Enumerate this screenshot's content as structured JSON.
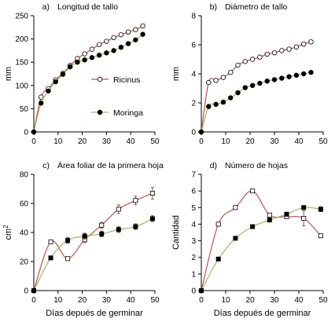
{
  "figure": {
    "xlabel_bottom": "Días depués de germinar"
  },
  "chart_data": [
    {
      "type": "line",
      "panel": "a)",
      "title": "Longitud de tallo",
      "ylabel": "mm",
      "xlabel": "",
      "xlim": [
        0,
        50
      ],
      "ylim": [
        0,
        250
      ],
      "xticks": [
        0,
        10,
        20,
        30,
        40,
        50
      ],
      "yticks": [
        0,
        50,
        100,
        150,
        200,
        250
      ],
      "legend_position": "right",
      "series": [
        {
          "name": "Ricinus",
          "marker": "open-circle",
          "color": "#c0504d",
          "x": [
            0,
            3,
            6,
            9,
            12,
            15,
            18,
            21,
            24,
            27,
            30,
            33,
            36,
            39,
            42,
            45
          ],
          "y": [
            0,
            75,
            93,
            112,
            126,
            143,
            158,
            168,
            178,
            188,
            195,
            203,
            209,
            215,
            220,
            228
          ],
          "err": [
            0,
            3,
            3,
            3,
            3,
            3,
            3,
            3,
            3,
            3,
            3,
            3,
            3,
            3,
            3,
            4
          ]
        },
        {
          "name": "Moringa",
          "marker": "filled-circle",
          "color": "#9bbb59",
          "x": [
            0,
            3,
            6,
            9,
            12,
            15,
            18,
            21,
            24,
            27,
            30,
            33,
            36,
            39,
            42,
            45
          ],
          "y": [
            0,
            62,
            88,
            108,
            124,
            140,
            150,
            155,
            160,
            165,
            170,
            175,
            182,
            190,
            198,
            210
          ],
          "err": [
            0,
            2,
            2,
            2,
            2,
            2,
            2,
            2,
            2,
            2,
            2,
            2,
            2,
            2,
            3,
            3
          ]
        }
      ]
    },
    {
      "type": "line",
      "panel": "b)",
      "title": "Diámetro de tallo",
      "ylabel": "mm",
      "xlabel": "",
      "xlim": [
        0,
        50
      ],
      "ylim": [
        0,
        8
      ],
      "xticks": [
        0,
        10,
        20,
        30,
        40,
        50
      ],
      "yticks": [
        0,
        2,
        4,
        6,
        8
      ],
      "series": [
        {
          "name": "Ricinus",
          "marker": "open-circle",
          "color": "#c0504d",
          "x": [
            0,
            3,
            6,
            9,
            12,
            15,
            18,
            21,
            24,
            27,
            30,
            33,
            36,
            39,
            42,
            45
          ],
          "y": [
            0,
            3.4,
            3.55,
            3.75,
            4.1,
            4.6,
            4.85,
            5.0,
            5.15,
            5.35,
            5.45,
            5.6,
            5.7,
            5.85,
            6.05,
            6.2
          ],
          "err": [
            0,
            0.05,
            0.05,
            0.05,
            0.05,
            0.05,
            0.05,
            0.05,
            0.05,
            0.05,
            0.05,
            0.05,
            0.05,
            0.05,
            0.05,
            0.05
          ]
        },
        {
          "name": "Moringa",
          "marker": "filled-circle",
          "color": "#9bbb59",
          "x": [
            0,
            3,
            6,
            9,
            12,
            15,
            18,
            21,
            24,
            27,
            30,
            33,
            36,
            39,
            42,
            45
          ],
          "y": [
            0,
            1.75,
            1.9,
            2.05,
            2.35,
            2.7,
            3.05,
            3.2,
            3.35,
            3.5,
            3.6,
            3.7,
            3.8,
            3.9,
            4.0,
            4.1
          ],
          "err": [
            0,
            0.05,
            0.05,
            0.05,
            0.05,
            0.05,
            0.05,
            0.05,
            0.05,
            0.05,
            0.05,
            0.05,
            0.05,
            0.05,
            0.05,
            0.05
          ]
        }
      ]
    },
    {
      "type": "line",
      "panel": "c)",
      "title": "Área foliar de la primera hoja",
      "ylabel": "cm",
      "ylabel_sup": "2",
      "xlabel": "Días depués de germinar",
      "xlim": [
        0,
        50
      ],
      "ylim": [
        0,
        80
      ],
      "xticks": [
        0,
        10,
        20,
        30,
        40,
        50
      ],
      "yticks": [
        0,
        20,
        40,
        60,
        80
      ],
      "series": [
        {
          "name": "Ricinus",
          "marker": "open-square",
          "color": "#c0504d",
          "x": [
            0,
            7,
            14,
            21,
            28,
            35,
            42,
            49
          ],
          "y": [
            0,
            33.5,
            22,
            35,
            45,
            56,
            62,
            67
          ],
          "err": [
            0,
            1,
            1,
            2,
            2,
            3,
            3,
            4
          ]
        },
        {
          "name": "Moringa",
          "marker": "filled-square",
          "color": "#9bbb59",
          "x": [
            0,
            7,
            14,
            21,
            28,
            35,
            42,
            49
          ],
          "y": [
            0,
            22.5,
            34.5,
            37.5,
            39,
            42,
            44,
            49.5
          ],
          "err": [
            0,
            1,
            2,
            2,
            2,
            2,
            2,
            2
          ]
        }
      ]
    },
    {
      "type": "line",
      "panel": "d)",
      "title": "Número de hojas",
      "ylabel": "Cantidad",
      "xlabel": "Días depués de germinar",
      "xlim": [
        0,
        50
      ],
      "ylim": [
        0,
        7
      ],
      "xticks": [
        0,
        10,
        20,
        30,
        40,
        50
      ],
      "yticks": [
        0,
        1,
        2,
        3,
        4,
        5,
        6,
        7
      ],
      "series": [
        {
          "name": "Ricinus",
          "marker": "open-square",
          "color": "#c0504d",
          "x": [
            0,
            7,
            14,
            21,
            28,
            35,
            42,
            49
          ],
          "y": [
            0,
            4.0,
            5.0,
            6.0,
            4.55,
            4.45,
            4.35,
            3.3
          ],
          "err": [
            0,
            0,
            0,
            0,
            0.1,
            0.1,
            0.45,
            0.05
          ]
        },
        {
          "name": "Moringa",
          "marker": "filled-square",
          "color": "#9bbb59",
          "x": [
            0,
            7,
            14,
            21,
            28,
            35,
            42,
            49
          ],
          "y": [
            0,
            1.9,
            3.15,
            3.85,
            4.25,
            4.6,
            5.0,
            4.9
          ],
          "err": [
            0,
            0,
            0,
            0,
            0,
            0.1,
            0.1,
            0.15
          ]
        }
      ]
    }
  ]
}
